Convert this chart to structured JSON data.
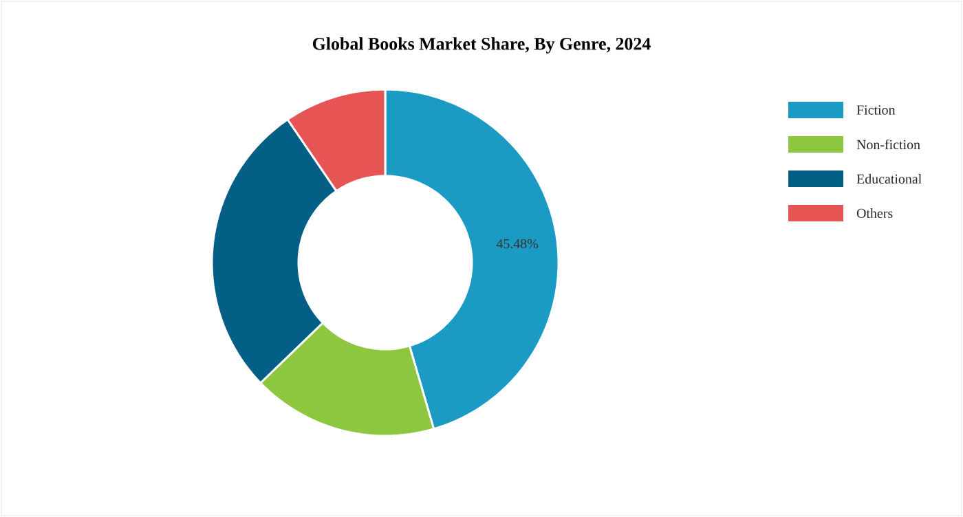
{
  "chart_data": {
    "type": "donut",
    "title": "Global Books Market Share, By Genre, 2024",
    "categories": [
      "Fiction",
      "Non-fiction",
      "Educational",
      "Others"
    ],
    "values": [
      45.48,
      17.3,
      27.7,
      9.52
    ],
    "colors": [
      "#1b9bc4",
      "#8dc63f",
      "#045f87",
      "#e65454"
    ],
    "value_labels": [
      "45.48%",
      null,
      null,
      null
    ],
    "legend": "right"
  }
}
